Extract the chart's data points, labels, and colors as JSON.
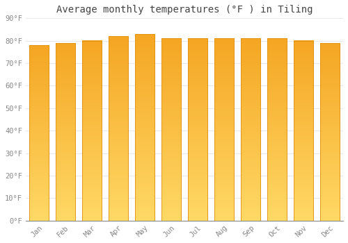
{
  "title": "Average monthly temperatures (°F ) in Tiling",
  "months": [
    "Jan",
    "Feb",
    "Mar",
    "Apr",
    "May",
    "Jun",
    "Jul",
    "Aug",
    "Sep",
    "Oct",
    "Nov",
    "Dec"
  ],
  "values": [
    78,
    79,
    80,
    82,
    83,
    81,
    81,
    81,
    81,
    81,
    80,
    79
  ],
  "bar_color_top": "#F5A623",
  "bar_color_bottom": "#FFD966",
  "bar_color_edge": "#E09010",
  "bar_width": 0.75,
  "ylim": [
    0,
    90
  ],
  "yticks": [
    0,
    10,
    20,
    30,
    40,
    50,
    60,
    70,
    80,
    90
  ],
  "ytick_labels": [
    "0°F",
    "10°F",
    "20°F",
    "30°F",
    "40°F",
    "50°F",
    "60°F",
    "70°F",
    "80°F",
    "90°F"
  ],
  "background_color": "#ffffff",
  "grid_color": "#e8e8e8",
  "title_fontsize": 10,
  "tick_fontsize": 7.5,
  "font_family": "monospace"
}
